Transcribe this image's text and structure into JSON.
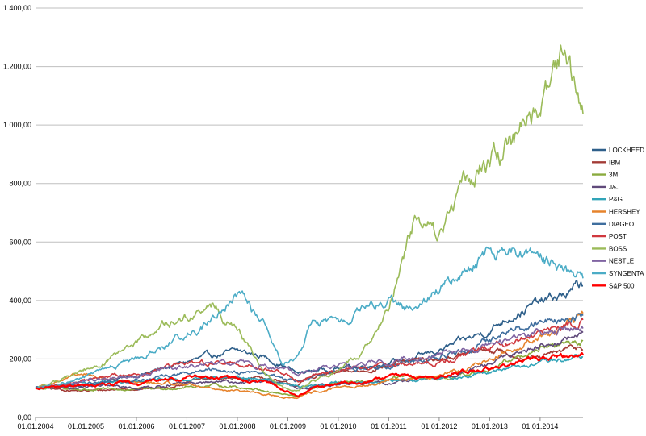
{
  "chart_data": {
    "type": "line",
    "title": "",
    "xlabel": "",
    "ylabel": "",
    "ylim": [
      0,
      1400
    ],
    "grid": "horizontal",
    "legend_position": "right",
    "y_ticks": [
      {
        "value": 0,
        "label": "0,00"
      },
      {
        "value": 200,
        "label": "200,00"
      },
      {
        "value": 400,
        "label": "400,00"
      },
      {
        "value": 600,
        "label": "600,00"
      },
      {
        "value": 800,
        "label": "800,00"
      },
      {
        "value": 1000,
        "label": "1.000,00"
      },
      {
        "value": 1200,
        "label": "1.200,00"
      },
      {
        "value": 1400,
        "label": "1.400,00"
      }
    ],
    "x_ticks": [
      {
        "value": 2004.0,
        "label": "01.01.2004"
      },
      {
        "value": 2005.0,
        "label": "01.01.2005"
      },
      {
        "value": 2006.0,
        "label": "01.01.2006"
      },
      {
        "value": 2007.0,
        "label": "01.01.2007"
      },
      {
        "value": 2008.0,
        "label": "01.01.2008"
      },
      {
        "value": 2009.0,
        "label": "01.01.2009"
      },
      {
        "value": 2010.0,
        "label": "01.01.2010"
      },
      {
        "value": 2011.0,
        "label": "01.01.2011"
      },
      {
        "value": 2012.0,
        "label": "01.01.2012"
      },
      {
        "value": 2013.0,
        "label": "01.01.2013"
      },
      {
        "value": 2014.0,
        "label": "01.01.2014"
      }
    ],
    "x_range": [
      2004.0,
      2014.85
    ],
    "x": [
      2004.0,
      2004.5,
      2005.0,
      2005.5,
      2006.0,
      2006.5,
      2007.0,
      2007.5,
      2008.0,
      2008.5,
      2008.9,
      2009.2,
      2009.5,
      2010.0,
      2010.5,
      2011.0,
      2011.5,
      2012.0,
      2012.5,
      2013.0,
      2013.5,
      2014.0,
      2014.5,
      2014.85
    ],
    "series": [
      {
        "name": "LOCKHEED",
        "color": "#2e5f8a",
        "values": [
          100,
          105,
          110,
          125,
          145,
          165,
          190,
          210,
          225,
          210,
          180,
          150,
          160,
          170,
          175,
          190,
          200,
          230,
          260,
          300,
          360,
          390,
          420,
          450
        ]
      },
      {
        "name": "IBM",
        "color": "#a33b36",
        "values": [
          100,
          95,
          90,
          95,
          100,
          100,
          120,
          135,
          130,
          140,
          115,
          110,
          140,
          150,
          160,
          180,
          190,
          200,
          215,
          230,
          215,
          200,
          230,
          240
        ]
      },
      {
        "name": "3M",
        "color": "#8aab3e",
        "values": [
          100,
          100,
          95,
          95,
          95,
          100,
          105,
          110,
          105,
          95,
          80,
          70,
          100,
          115,
          120,
          130,
          135,
          125,
          145,
          170,
          200,
          240,
          250,
          260
        ]
      },
      {
        "name": "J&J",
        "color": "#604a7b",
        "values": [
          100,
          100,
          105,
          105,
          100,
          110,
          115,
          120,
          120,
          125,
          110,
          100,
          110,
          115,
          115,
          120,
          130,
          135,
          150,
          180,
          220,
          250,
          265,
          280
        ]
      },
      {
        "name": "P&G",
        "color": "#31a4b8",
        "values": [
          100,
          110,
          115,
          120,
          120,
          125,
          130,
          135,
          135,
          135,
          120,
          105,
          110,
          120,
          120,
          125,
          130,
          135,
          140,
          160,
          175,
          180,
          195,
          210
        ]
      },
      {
        "name": "HERSHEY",
        "color": "#e6832c",
        "values": [
          100,
          130,
          145,
          130,
          120,
          115,
          115,
          100,
          90,
          80,
          70,
          65,
          85,
          100,
          110,
          120,
          135,
          145,
          165,
          200,
          240,
          280,
          310,
          340
        ]
      },
      {
        "name": "DIAGEO",
        "color": "#3f6e9e",
        "values": [
          100,
          110,
          115,
          125,
          130,
          140,
          150,
          160,
          160,
          150,
          135,
          120,
          140,
          155,
          165,
          180,
          195,
          205,
          225,
          260,
          300,
          330,
          340,
          350
        ]
      },
      {
        "name": "POST",
        "color": "#d0383e",
        "values": [
          100,
          115,
          125,
          140,
          150,
          165,
          180,
          190,
          185,
          170,
          150,
          130,
          145,
          160,
          170,
          180,
          185,
          190,
          210,
          240,
          270,
          290,
          315,
          335
        ]
      },
      {
        "name": "BOSS",
        "color": "#9bbb59",
        "values": [
          100,
          130,
          165,
          200,
          250,
          310,
          340,
          380,
          300,
          160,
          100,
          90,
          120,
          160,
          220,
          380,
          680,
          620,
          800,
          880,
          950,
          1050,
          1250,
          1070
        ]
      },
      {
        "name": "NESTLE",
        "color": "#8064a2",
        "values": [
          100,
          115,
          125,
          135,
          145,
          160,
          170,
          180,
          185,
          180,
          165,
          145,
          160,
          175,
          185,
          195,
          205,
          215,
          225,
          245,
          270,
          290,
          300,
          310
        ]
      },
      {
        "name": "SYNGENTA",
        "color": "#4bacc6",
        "values": [
          100,
          110,
          140,
          170,
          200,
          240,
          290,
          330,
          420,
          320,
          190,
          200,
          330,
          320,
          360,
          400,
          360,
          430,
          490,
          570,
          560,
          530,
          500,
          470
        ]
      },
      {
        "name": "S&P 500",
        "color": "#ff0000",
        "values": [
          100,
          105,
          110,
          115,
          120,
          130,
          135,
          140,
          130,
          120,
          95,
          75,
          100,
          115,
          120,
          135,
          140,
          140,
          155,
          170,
          185,
          200,
          210,
          215
        ]
      }
    ]
  }
}
